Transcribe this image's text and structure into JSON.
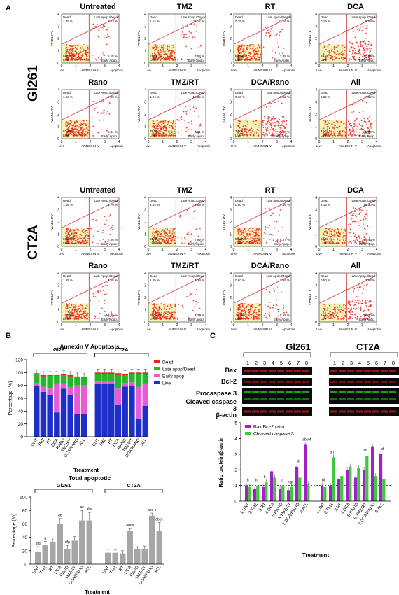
{
  "panel_labels": {
    "a": "A",
    "b": "B",
    "c": "C"
  },
  "flow": {
    "cell_lines": [
      "Gl261",
      "CT2A"
    ],
    "quadrant_labels": {
      "dead": "Dead",
      "late": "Late Apop./Dead",
      "early": "Early Apop.",
      "live": "Live"
    },
    "x_axis": "ANNEXIN V",
    "x_end": "Apoptosis",
    "x_start": "Live",
    "y_axis": "VIABILITY",
    "ticks_x": [
      "0",
      "1",
      "2",
      "3",
      "4"
    ],
    "ticks_y": [
      "0",
      "1",
      "2",
      "3",
      "4"
    ],
    "plots": [
      {
        "title": "Untreated",
        "dead": "1.75 %",
        "late": "9.03 %",
        "early": "6.15 %",
        "live": "83.07 %"
      },
      {
        "title": "TMZ",
        "dead": "1.54 %",
        "late": "11.12 %",
        "early": "7.53 %",
        "live": "79.82 %"
      },
      {
        "title": "RT",
        "dead": "0.75 %",
        "late": "11.16 %",
        "early": "7.48 %",
        "live": "80.61 %"
      },
      {
        "title": "DCA",
        "dead": "0.19 %",
        "late": "8.09 %",
        "early": "60.04 %",
        "live": "31.69 %"
      },
      {
        "title": "Rano",
        "dead": "1.53 %",
        "late": "9.20 %",
        "early": "6.31 %",
        "live": "82.96 %"
      },
      {
        "title": "TMZ/RT",
        "dead": "1.94 %",
        "late": "10.25 %",
        "early": "8.31 %",
        "live": "79.55 %"
      },
      {
        "title": "DCA/Rano",
        "dead": "0.10 %",
        "late": "8.52 %",
        "early": "57.39 %",
        "live": "34.00 %"
      },
      {
        "title": "All",
        "dead": "0.35 %",
        "late": "7.55 %",
        "early": "48.60 %",
        "live": "43.47 %"
      },
      {
        "title": "Untreated",
        "dead": "1.16 %",
        "late": "4.79 %",
        "early": "7.26 %",
        "live": "86.80 %"
      },
      {
        "title": "TMZ",
        "dead": "1.04 %",
        "late": "3.89 %",
        "early": "7.99 %",
        "live": "86.98 %"
      },
      {
        "title": "RT",
        "dead": "0.80 %",
        "late": "4.46 %",
        "early": "8.07 %",
        "live": "86.67 %"
      },
      {
        "title": "DCA",
        "dead": "2.15 %",
        "late": "15.90 %",
        "early": "29.45 %",
        "live": "52.50 %"
      },
      {
        "title": "Rano",
        "dead": "1.65 %",
        "late": "4.55 %",
        "early": "13.80 %",
        "live": "79.86 %"
      },
      {
        "title": "TMZ/RT",
        "dead": "1.25 %",
        "late": "4.39 %",
        "early": "7.72 %",
        "live": "86.73 %"
      },
      {
        "title": "DCA/Rano",
        "dead": "0.60 %",
        "late": "3.95 %",
        "early": "15.65 %",
        "live": "79.80 %"
      },
      {
        "title": "All",
        "dead": "0.50 %",
        "late": "7.93 %",
        "early": "50.30 %",
        "live": "41.27 %"
      }
    ]
  },
  "chart_data": [
    {
      "type": "bar",
      "title": "Annexin V Apoptosis",
      "xlabel": "Treatment",
      "ylabel": "Percentage (%)",
      "ylim": [
        0,
        120
      ],
      "yticks": [
        "0",
        "20",
        "40",
        "60",
        "80",
        "100",
        "120"
      ],
      "groups": [
        "Gl261",
        "CT2A"
      ],
      "categories": [
        "UNT",
        "TMZ",
        "RT",
        "DCA",
        "RANO",
        "TMZ/RT",
        "DCA/RANO",
        "ALL"
      ],
      "legend_placement": "right",
      "series": [
        {
          "name": "Live",
          "color": "#1d2fc8",
          "gl261": [
            80,
            70,
            65,
            38,
            75,
            65,
            35,
            35
          ],
          "ct2a": [
            82,
            82,
            82,
            50,
            78,
            80,
            28,
            48
          ]
        },
        {
          "name": "Early apop",
          "color": "#e85ad6",
          "gl261": [
            4,
            8,
            10,
            45,
            8,
            12,
            45,
            45
          ],
          "ct2a": [
            4,
            5,
            5,
            25,
            6,
            5,
            50,
            35
          ]
        },
        {
          "name": "Late apop/Dead",
          "color": "#22b82a",
          "gl261": [
            13,
            16,
            20,
            12,
            13,
            17,
            13,
            12
          ],
          "ct2a": [
            12,
            11,
            11,
            21,
            12,
            13,
            20,
            15
          ]
        },
        {
          "name": "Dead",
          "color": "#e8211b",
          "gl261": [
            2,
            2,
            1,
            1,
            2,
            2,
            1,
            1
          ],
          "ct2a": [
            2,
            2,
            2,
            3,
            2,
            2,
            2,
            2
          ]
        }
      ]
    },
    {
      "type": "bar",
      "title": "Total apoptotic",
      "xlabel": "Treatment",
      "ylabel": "Percentage (%)",
      "ylim": [
        0,
        100
      ],
      "yticks": [
        "0",
        "20",
        "40",
        "60",
        "80",
        "100"
      ],
      "groups": [
        "Gl261",
        "CT2A"
      ],
      "categories": [
        "UNT",
        "TMZ",
        "RT",
        "DCA",
        "RANO",
        "TMZ/RT",
        "DCA/RANO",
        "ALL"
      ],
      "gl261": [
        18,
        28,
        33,
        60,
        22,
        35,
        65,
        65
      ],
      "gl261_err": [
        8,
        6,
        6,
        8,
        6,
        6,
        15,
        12
      ],
      "ct2a": [
        17,
        17,
        16,
        50,
        22,
        23,
        72,
        50
      ],
      "ct2a_err": [
        5,
        4,
        4,
        3,
        4,
        4,
        4,
        12
      ],
      "gl261_sig": [
        "dfg",
        "g",
        "",
        "ae",
        "dfg",
        "",
        "ae",
        "abe"
      ],
      "ct2a_sig": [
        "",
        "",
        "",
        "abce",
        "",
        "",
        "abc e",
        "abce"
      ]
    },
    {
      "type": "bar",
      "title": "",
      "xlabel": "Treatment",
      "ylabel": "Ratio protein/β-actin",
      "ylim": [
        0,
        5
      ],
      "yticks": [
        "0",
        "1",
        "2",
        "3",
        "4",
        "5"
      ],
      "categories": [
        "1.UNT",
        "2.TMZ",
        "3.RT",
        "4.DCA",
        "5.RANO",
        "6.TMZ/RT",
        "7.DCA/RANO",
        "8.ALL"
      ],
      "legend_placement": "top-left",
      "series": [
        {
          "name": "Bax:Bcl-2 ratio",
          "color": "#a020c8",
          "gl261": [
            1.0,
            0.8,
            0.9,
            1.9,
            0.8,
            0.7,
            2.2,
            3.6
          ],
          "ct2a": [
            1.0,
            1.0,
            1.4,
            2.0,
            1.5,
            2.0,
            3.5,
            3.0
          ]
        },
        {
          "name": "Cleaved caspase 3",
          "color": "#3ec83a",
          "gl261": [
            0.9,
            1.0,
            1.2,
            1.5,
            1.0,
            0.9,
            1.5,
            1.1
          ],
          "ct2a": [
            0.9,
            2.8,
            1.6,
            2.2,
            2.1,
            2.9,
            1.6,
            1.4
          ]
        }
      ],
      "gl261_sig": [
        "h",
        "h",
        "h",
        "",
        "h",
        "h g",
        "d",
        "abcef"
      ],
      "ct2a_sig": [
        "bf",
        "ah",
        "",
        "",
        "",
        "ah",
        "",
        "bf"
      ]
    }
  ],
  "blot": {
    "groups": [
      "Gl261",
      "CT2A"
    ],
    "lanes": [
      "1",
      "2",
      "3",
      "4",
      "5",
      "6",
      "7",
      "8"
    ],
    "rows": [
      "Bax",
      "Bcl-2",
      "Procaspase 3",
      "Cleaved caspase 3",
      "β-actin"
    ]
  },
  "colors": {
    "dot": "#e8231a",
    "live_zone": "#f4f3b8",
    "gate": "#d94040"
  }
}
